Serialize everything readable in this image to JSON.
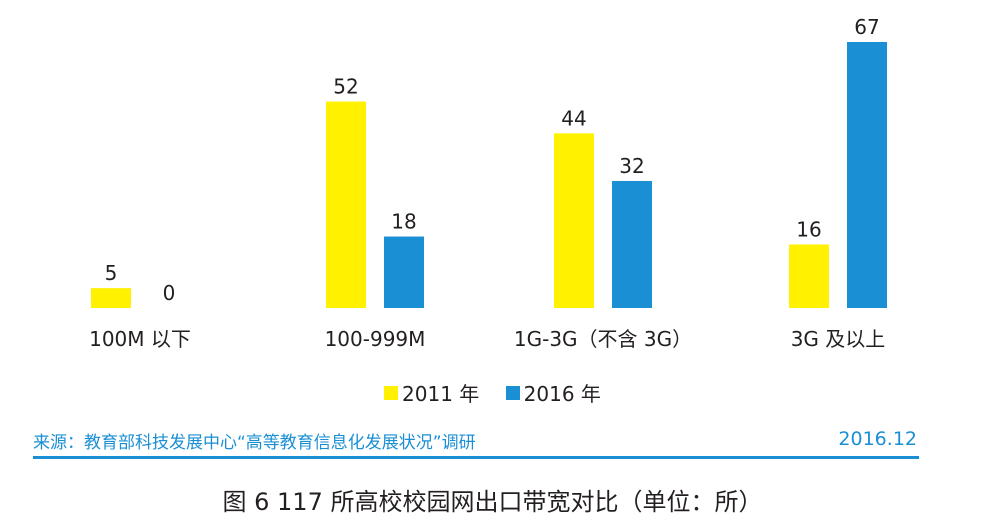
{
  "chart_data": {
    "type": "bar",
    "categories": [
      "100M 以下",
      "100-999M",
      "1G-3G（不含 3G）",
      "3G 及以上"
    ],
    "series": [
      {
        "name": "2011 年",
        "values": [
          5,
          52,
          44,
          16
        ],
        "color": "#fff100"
      },
      {
        "name": "2016 年",
        "values": [
          0,
          18,
          32,
          67
        ],
        "color": "#1a8fd4"
      }
    ],
    "ylim": [
      0,
      70
    ],
    "grid": false,
    "legend_position": "bottom",
    "data_labels": true
  },
  "source_text": "来源：教育部科技发展中心“高等教育信息化发展状况”调研",
  "date_text": "2016.12",
  "caption": "图 6  117 所高校校园网出口带宽对比（单位：所）"
}
